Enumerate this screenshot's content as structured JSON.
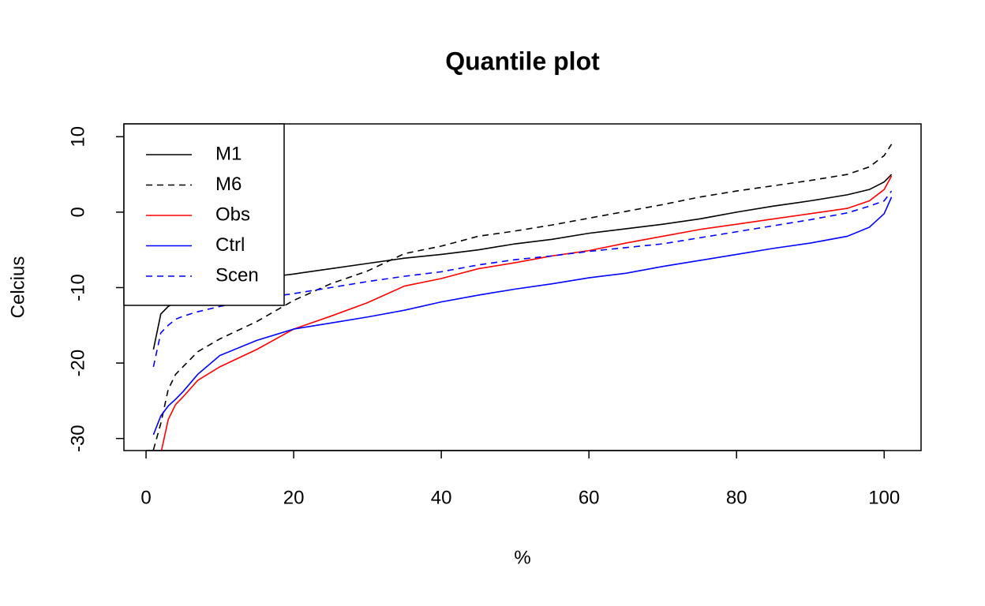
{
  "chart_data": {
    "type": "line",
    "title": "Quantile plot",
    "xlabel": "%",
    "ylabel": "Celcius",
    "x": [
      1,
      2,
      3,
      4,
      5,
      7,
      10,
      15,
      20,
      25,
      30,
      35,
      40,
      45,
      50,
      55,
      60,
      65,
      70,
      75,
      80,
      85,
      90,
      95,
      98,
      100,
      101
    ],
    "series": [
      {
        "name": "M1",
        "color": "#000000",
        "linestyle": "solid",
        "values": [
          -18.2,
          -13.5,
          -12.5,
          -12,
          -11,
          -10.2,
          -9.5,
          -8.8,
          -8.2,
          -7.5,
          -6.8,
          -6.1,
          -5.6,
          -5.0,
          -4.2,
          -3.6,
          -2.8,
          -2.2,
          -1.6,
          -0.9,
          0,
          0.8,
          1.5,
          2.3,
          3.0,
          4,
          5
        ]
      },
      {
        "name": "M6",
        "color": "#000000",
        "linestyle": "dashed",
        "values": [
          -31.5,
          -28,
          -23.5,
          -21.5,
          -20.5,
          -18.5,
          -16.8,
          -14.5,
          -11.7,
          -9.5,
          -7.8,
          -5.5,
          -4.5,
          -3.2,
          -2.5,
          -1.7,
          -0.8,
          0.1,
          1.0,
          2.0,
          2.8,
          3.5,
          4.2,
          5.0,
          6.0,
          7.5,
          9
        ]
      },
      {
        "name": "Obs",
        "color": "#ff0000",
        "linestyle": "solid",
        "values": [
          -34,
          -32,
          -27.5,
          -25.5,
          -24.5,
          -22.3,
          -20.5,
          -18.2,
          -15.5,
          -13.8,
          -12,
          -9.8,
          -8.8,
          -7.5,
          -6.7,
          -5.8,
          -5.1,
          -4.1,
          -3.2,
          -2.3,
          -1.6,
          -0.9,
          -0.2,
          0.5,
          1.5,
          3,
          4.8
        ]
      },
      {
        "name": "Ctrl",
        "color": "#0000ff",
        "linestyle": "solid",
        "values": [
          -29.5,
          -27,
          -25.7,
          -24.8,
          -23.8,
          -21.5,
          -19,
          -17,
          -15.5,
          -14.7,
          -13.9,
          -13,
          -11.9,
          -11,
          -10.2,
          -9.5,
          -8.7,
          -8.1,
          -7.2,
          -6.4,
          -5.6,
          -4.8,
          -4.1,
          -3.2,
          -2,
          -0.2,
          2
        ]
      },
      {
        "name": "Scen",
        "color": "#0000ff",
        "linestyle": "dashed",
        "values": [
          -20.5,
          -16,
          -15,
          -14.2,
          -13.8,
          -13.2,
          -12.5,
          -11.5,
          -10.8,
          -10,
          -9.2,
          -8.5,
          -7.9,
          -7,
          -6.3,
          -5.8,
          -5.2,
          -4.7,
          -4.2,
          -3.4,
          -2.6,
          -1.8,
          -1,
          -0.1,
          0.8,
          1.5,
          2.8
        ]
      }
    ],
    "xlim": [
      -3,
      105
    ],
    "ylim": [
      -31.6,
      11.7
    ],
    "xticks": [
      0,
      20,
      40,
      60,
      80,
      100
    ],
    "yticks": [
      -30,
      -20,
      -10,
      0,
      10
    ],
    "legend": "topleft"
  }
}
